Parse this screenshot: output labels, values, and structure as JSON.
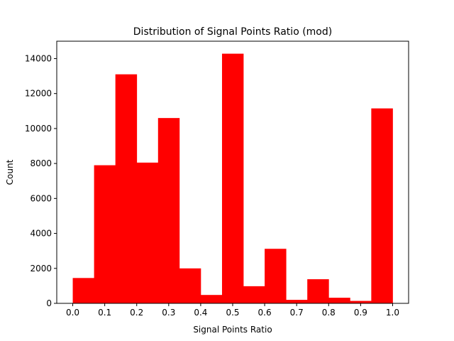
{
  "chart_data": {
    "type": "bar",
    "title": "Distribution of Signal Points Ratio (mod)",
    "xlabel": "Signal Points Ratio",
    "ylabel": "Count",
    "bin_edges": [
      0.0,
      0.0667,
      0.1333,
      0.2,
      0.2667,
      0.3333,
      0.4,
      0.4667,
      0.5333,
      0.6,
      0.6667,
      0.7333,
      0.8,
      0.8667,
      0.9333,
      1.0
    ],
    "values": [
      1450,
      7900,
      13100,
      8050,
      10600,
      2000,
      480,
      14280,
      980,
      3120,
      200,
      1380,
      320,
      140,
      11150
    ],
    "xlim": [
      -0.05,
      1.05
    ],
    "ylim": [
      0,
      14994
    ],
    "x_ticks": [
      0.0,
      0.1,
      0.2,
      0.3,
      0.4,
      0.5,
      0.6,
      0.7,
      0.8,
      0.9,
      1.0
    ],
    "x_tick_labels": [
      "0.0",
      "0.1",
      "0.2",
      "0.3",
      "0.4",
      "0.5",
      "0.6",
      "0.7",
      "0.8",
      "0.9",
      "1.0"
    ],
    "y_ticks": [
      0,
      2000,
      4000,
      6000,
      8000,
      10000,
      12000,
      14000
    ],
    "y_tick_labels": [
      "0",
      "2000",
      "4000",
      "6000",
      "8000",
      "10000",
      "12000",
      "14000"
    ],
    "bar_color": "#ff0000",
    "grid": false,
    "legend": "none"
  }
}
